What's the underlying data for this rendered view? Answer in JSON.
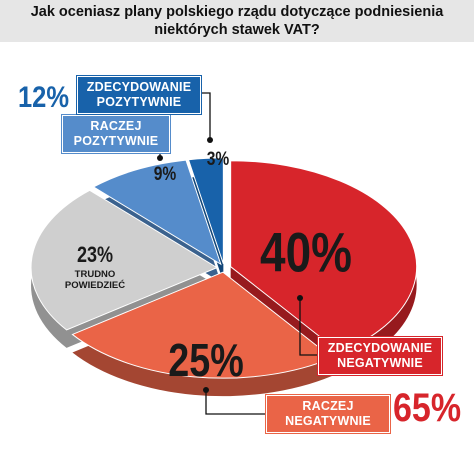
{
  "chart_data": {
    "type": "pie",
    "title": "Jak oceniasz plany polskiego rządu dotyczące podniesienia niektórych stawek VAT?",
    "categories": [
      "ZDECYDOWANIE NEGATYWNIE",
      "RACZEJ NEGATYWNIE",
      "TRUDNO POWIEDZIEĆ",
      "RACZEJ POZYTYWNIE",
      "ZDECYDOWANIE POZYTYWNIE"
    ],
    "values": [
      40,
      25,
      23,
      9,
      3
    ],
    "value_labels": [
      "40%",
      "25%",
      "23%",
      "9%",
      "3%"
    ],
    "colors": [
      "#d7252b",
      "#ea6447",
      "#cfcfcf",
      "#558ccb",
      "#1862aa"
    ],
    "groups": {
      "values": [
        65,
        12
      ],
      "value_labels": [
        "65%",
        "12%"
      ],
      "colors": [
        "#d7252b",
        "#1862aa"
      ]
    }
  }
}
